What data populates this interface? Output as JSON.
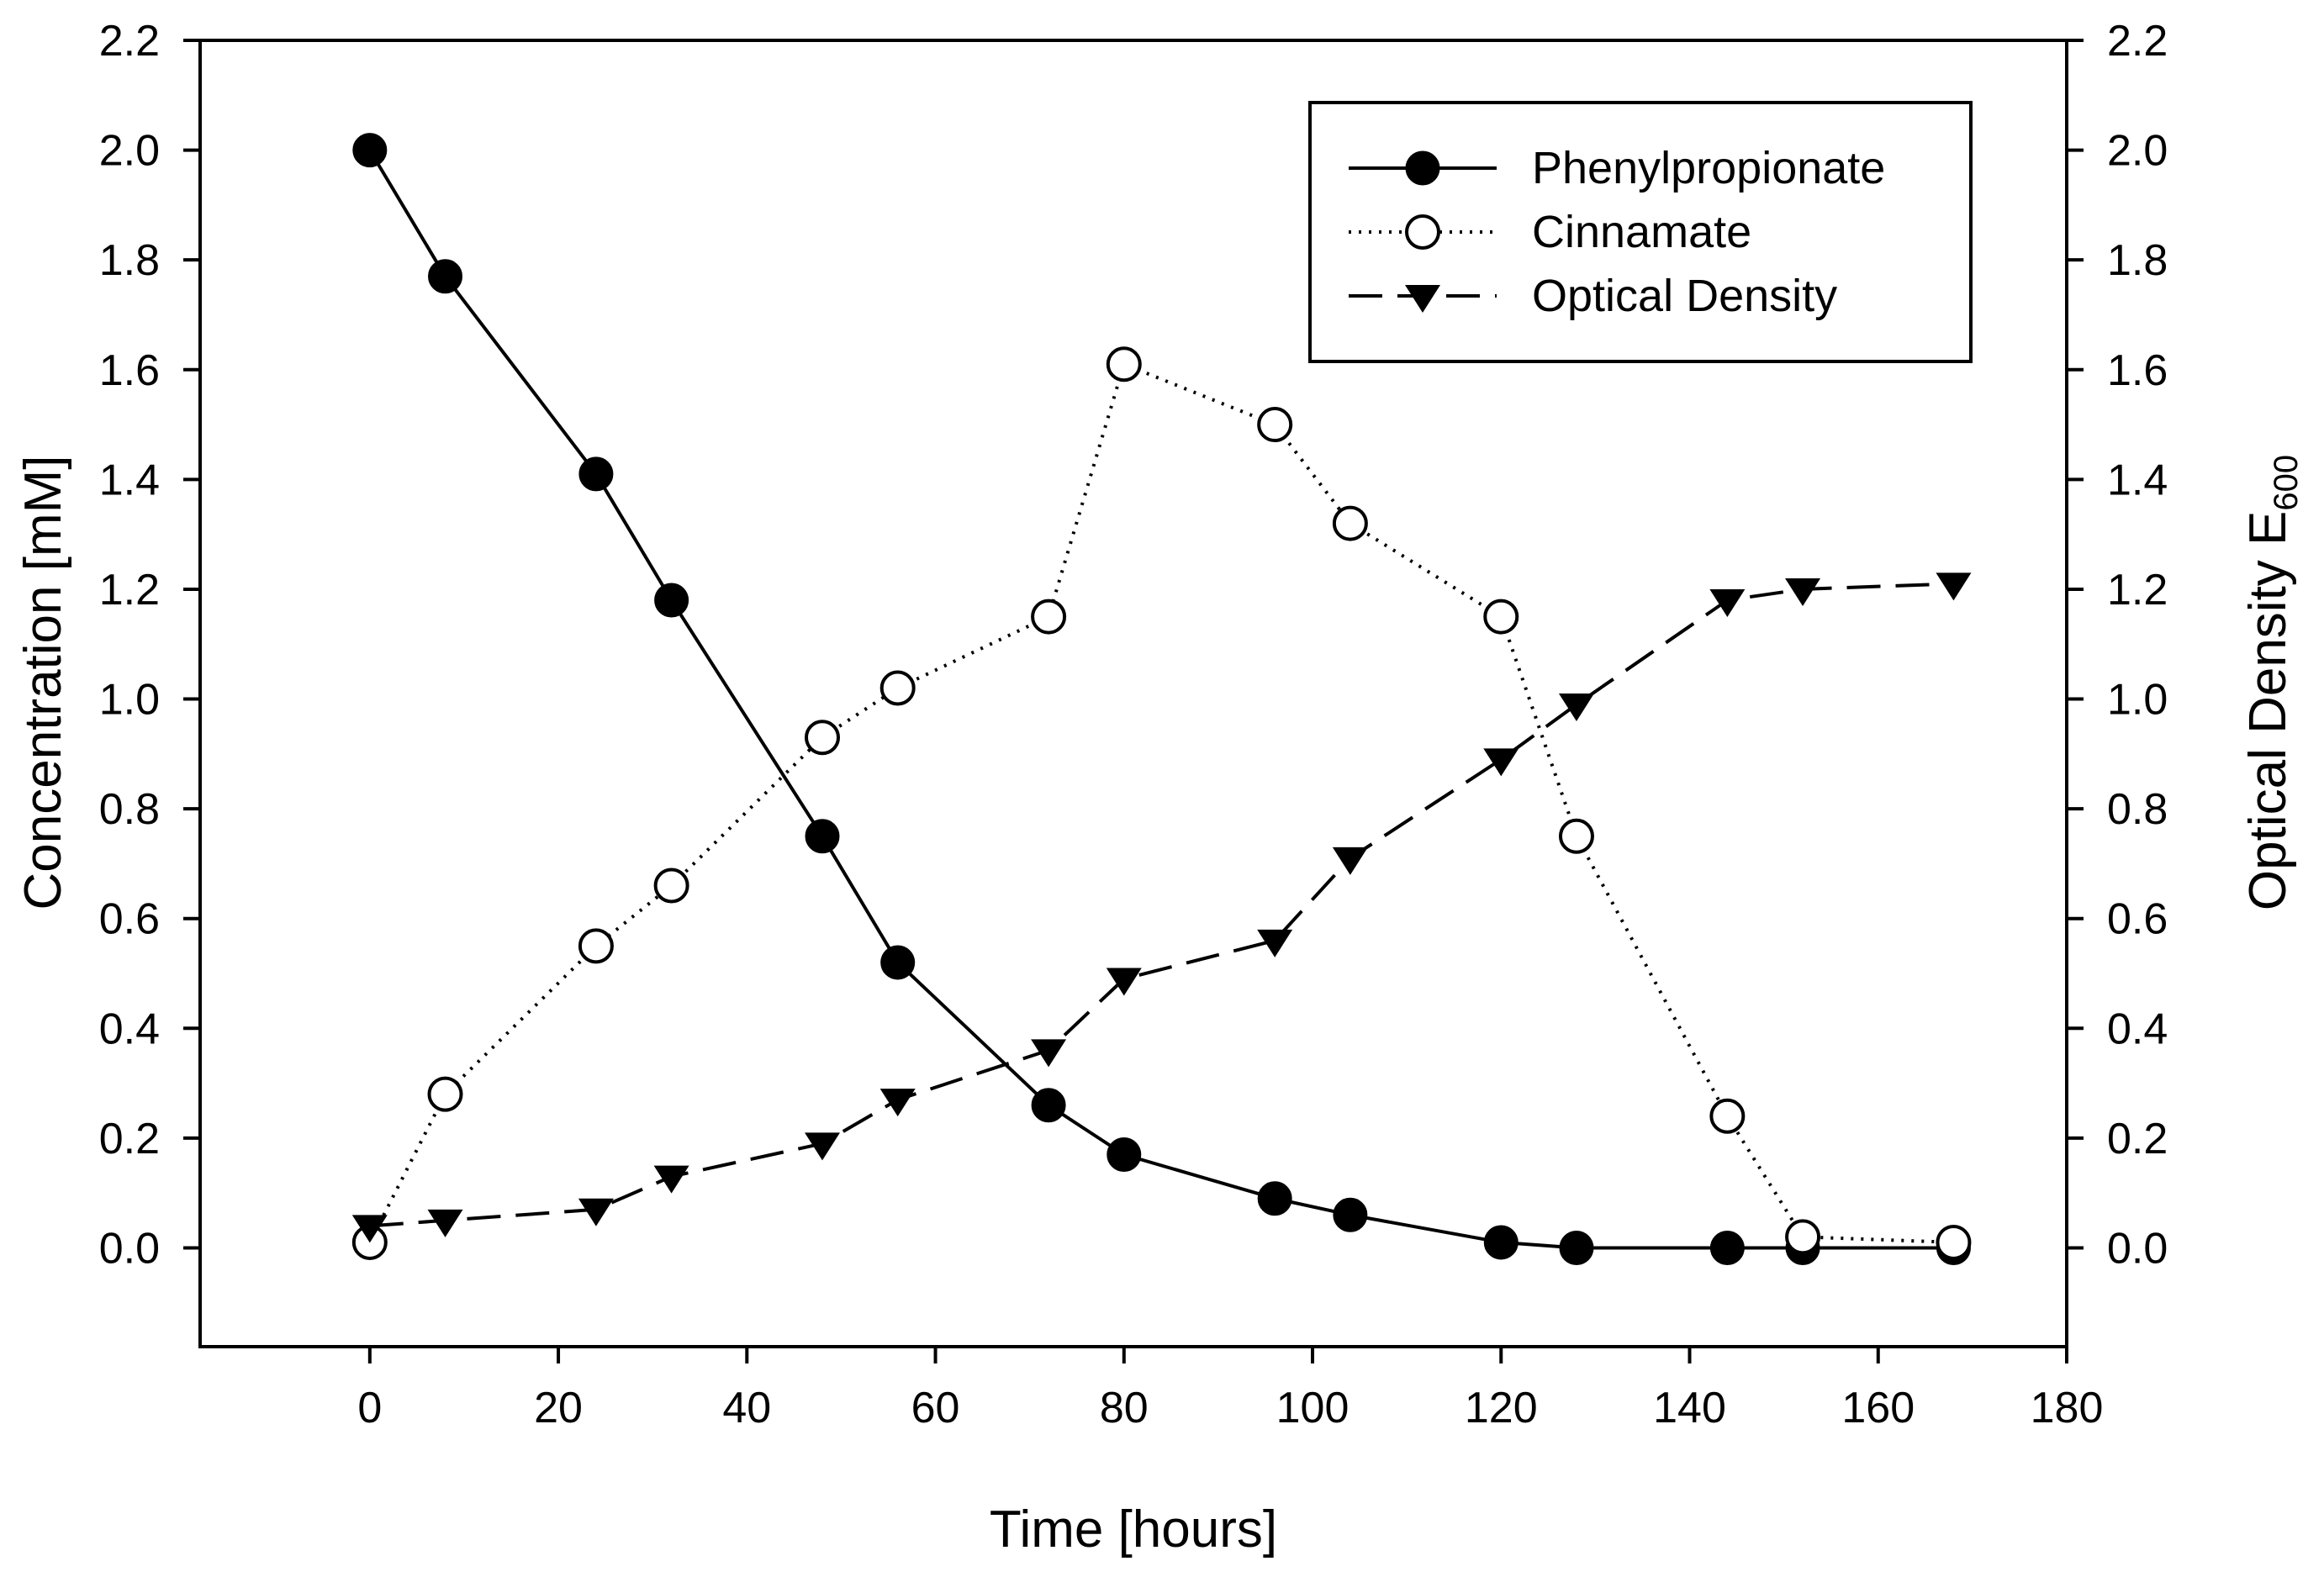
{
  "chart_data": {
    "type": "line",
    "title": "",
    "xlabel": "Time [hours]",
    "ylabel_left": "Concentration [mM]",
    "ylabel_right": "Optical Density E",
    "ylabel_right_subscript": "600",
    "xlim": [
      -18,
      180
    ],
    "ylim": [
      -0.18,
      2.2
    ],
    "y2lim": [
      -0.18,
      2.2
    ],
    "xticks": [
      "0",
      "20",
      "40",
      "60",
      "80",
      "100",
      "120",
      "140",
      "160",
      "180"
    ],
    "yticks": [
      "0.0",
      "0.2",
      "0.4",
      "0.6",
      "0.8",
      "1.0",
      "1.2",
      "1.4",
      "1.6",
      "1.8",
      "2.0",
      "2.2"
    ],
    "grid": false,
    "legend_position": "top-right",
    "series": [
      {
        "name": "Phenylpropionate",
        "marker": "filled-circle",
        "line": "solid",
        "axis": "left",
        "x": [
          0,
          8,
          24,
          32,
          48,
          56,
          72,
          80,
          96,
          104,
          120,
          128,
          144,
          152,
          168
        ],
        "values": [
          2.0,
          1.77,
          1.41,
          1.18,
          0.75,
          0.52,
          0.26,
          0.17,
          0.09,
          0.06,
          0.01,
          0.0,
          0.0,
          0.0,
          0.0
        ]
      },
      {
        "name": "Cinnamate",
        "marker": "open-circle",
        "line": "dotted",
        "axis": "left",
        "x": [
          0,
          8,
          24,
          32,
          48,
          56,
          72,
          80,
          96,
          104,
          120,
          128,
          144,
          152,
          168
        ],
        "values": [
          0.01,
          0.28,
          0.55,
          0.66,
          0.93,
          1.02,
          1.15,
          1.61,
          1.5,
          1.32,
          1.15,
          0.75,
          0.24,
          0.02,
          0.01
        ]
      },
      {
        "name": "Optical Density",
        "marker": "filled-triangle-down",
        "line": "dashed",
        "axis": "right",
        "x": [
          0,
          8,
          24,
          32,
          48,
          56,
          72,
          80,
          96,
          104,
          120,
          128,
          144,
          152,
          168
        ],
        "values": [
          0.04,
          0.05,
          0.07,
          0.13,
          0.19,
          0.27,
          0.36,
          0.49,
          0.56,
          0.71,
          0.89,
          0.99,
          1.18,
          1.2,
          1.21
        ]
      }
    ]
  }
}
